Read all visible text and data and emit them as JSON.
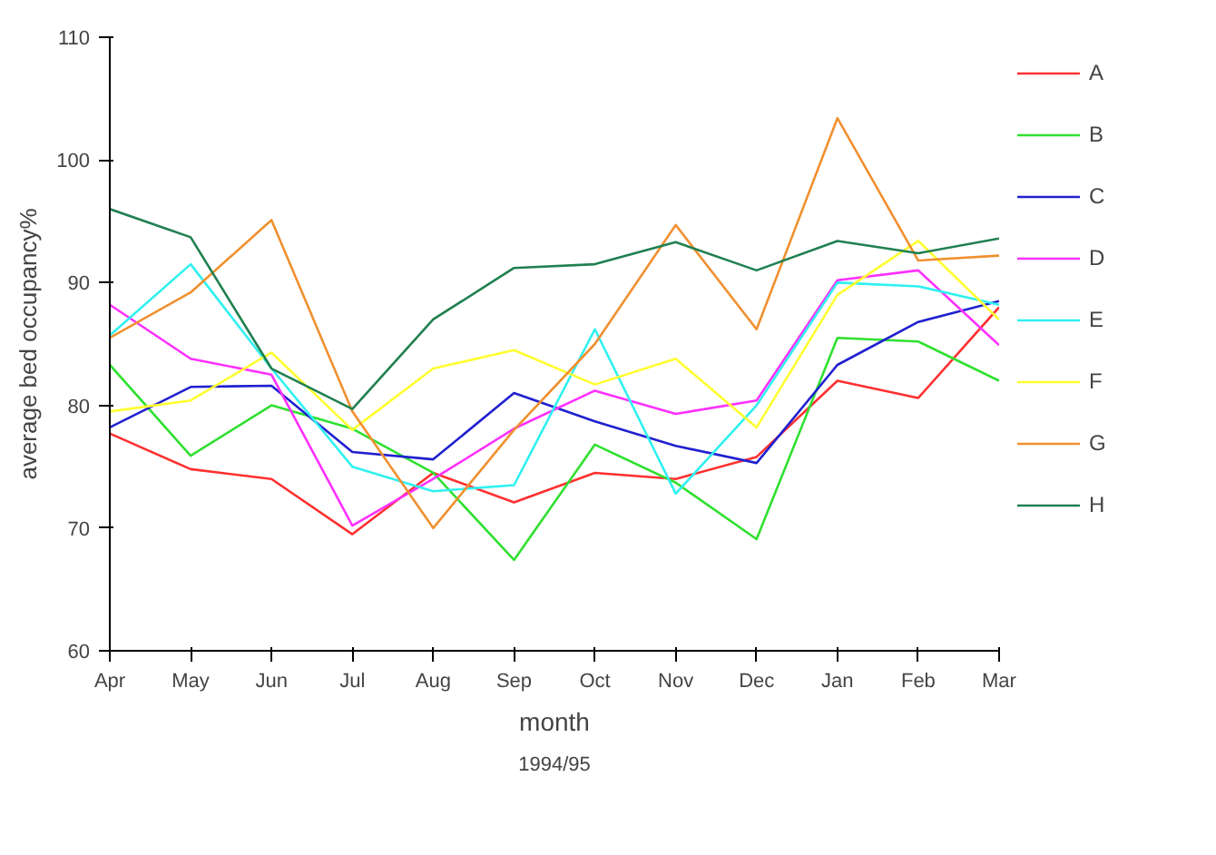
{
  "chart_data": {
    "type": "line",
    "xlabel": "month",
    "ylabel": "average bed occupancy%",
    "annotations": [
      "1994/95"
    ],
    "categories": [
      "Apr",
      "May",
      "Jun",
      "Jul",
      "Aug",
      "Sep",
      "Oct",
      "Nov",
      "Dec",
      "Jan",
      "Feb",
      "Mar"
    ],
    "ylim": [
      60,
      110
    ],
    "yticks": [
      60,
      70,
      80,
      90,
      100,
      110
    ],
    "grid": false,
    "legend": "right",
    "marker": "none",
    "line_style": "solid",
    "series": [
      {
        "name": "A",
        "color": "#ff3030",
        "values": [
          77.7,
          74.8,
          74.0,
          69.5,
          74.5,
          72.1,
          74.5,
          74.0,
          75.8,
          82.0,
          80.6,
          88.0
        ]
      },
      {
        "name": "B",
        "color": "#30e030",
        "values": [
          83.3,
          75.9,
          80.0,
          78.1,
          74.5,
          67.4,
          76.8,
          73.7,
          69.1,
          85.5,
          85.2,
          82.0
        ]
      },
      {
        "name": "C",
        "color": "#2020d0",
        "values": [
          78.2,
          81.5,
          81.6,
          76.2,
          75.6,
          81.0,
          78.7,
          76.7,
          75.3,
          83.3,
          86.8,
          88.5
        ]
      },
      {
        "name": "D",
        "color": "#ff30ff",
        "values": [
          88.2,
          83.8,
          82.5,
          70.2,
          74.0,
          78.1,
          81.2,
          79.3,
          80.4,
          90.2,
          91.0,
          84.9
        ]
      },
      {
        "name": "E",
        "color": "#30f0f0",
        "values": [
          85.7,
          91.5,
          83.0,
          75.0,
          73.0,
          73.5,
          86.2,
          72.8,
          80.0,
          90.0,
          89.7,
          88.2
        ]
      },
      {
        "name": "F",
        "color": "#ffff30",
        "values": [
          79.5,
          80.4,
          84.3,
          78.0,
          83.0,
          84.5,
          81.7,
          83.8,
          78.2,
          89.0,
          93.4,
          87.0
        ]
      },
      {
        "name": "G",
        "color": "#f09030",
        "values": [
          85.5,
          89.2,
          95.1,
          79.5,
          70.0,
          78.0,
          85.0,
          94.7,
          86.2,
          103.4,
          91.8,
          92.2
        ]
      },
      {
        "name": "H",
        "color": "#208050",
        "values": [
          96.0,
          93.7,
          83.0,
          79.7,
          87.0,
          91.2,
          91.5,
          93.3,
          91.0,
          93.4,
          92.4,
          93.6
        ]
      }
    ]
  }
}
